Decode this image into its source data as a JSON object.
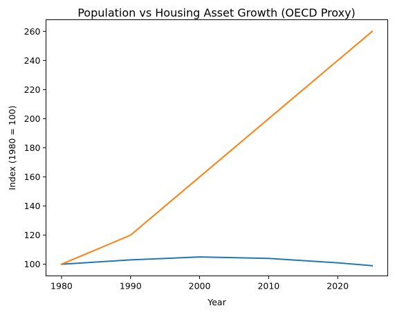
{
  "chart_data": {
    "type": "line",
    "title": "Population vs Housing Asset Growth (OECD Proxy)",
    "xlabel": "Year",
    "ylabel": "Index (1980 = 100)",
    "x": [
      1980,
      1990,
      2000,
      2010,
      2020,
      2025
    ],
    "xlim": [
      1977.75,
      2027.25
    ],
    "ylim": [
      92,
      268
    ],
    "xticks": [
      1980,
      1990,
      2000,
      2010,
      2020
    ],
    "yticks": [
      100,
      120,
      140,
      160,
      180,
      200,
      220,
      240,
      260
    ],
    "grid": false,
    "series": [
      {
        "values": [
          100,
          103,
          105,
          104,
          101,
          99
        ],
        "color": "#1f77b4"
      },
      {
        "values": [
          100,
          120,
          160,
          200,
          240,
          260
        ],
        "color": "#ff7f0e"
      }
    ]
  }
}
